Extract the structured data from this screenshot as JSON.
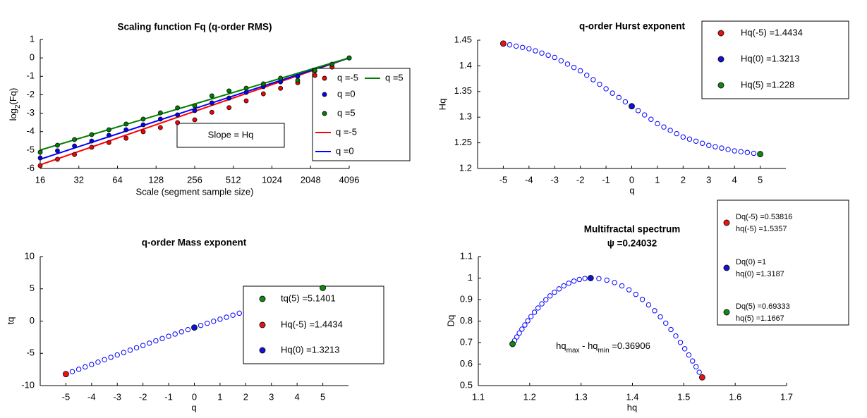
{
  "chart_data": [
    {
      "type": "scatter",
      "title": "Scaling function Fq (q-order RMS)",
      "xlabel": "Scale (segment sample size)",
      "ylabel": [
        "log",
        "2",
        "(Fq)"
      ],
      "xscale": "log2",
      "xlim": [
        16,
        4096
      ],
      "xticks": [
        16,
        32,
        64,
        128,
        256,
        512,
        1024,
        2048,
        4096
      ],
      "ylim": [
        -6,
        1
      ],
      "yticks": [
        -6,
        -5,
        -4,
        -3,
        -2,
        -1,
        0,
        1
      ],
      "annotation": "Slope = Hq",
      "legend": true,
      "series": [
        {
          "name": "q =-5",
          "style": "markers",
          "color": "#ff0000",
          "x": [
            16,
            21.8,
            29.6,
            40.3,
            54.9,
            74.7,
            101.6,
            138.3,
            188.1,
            256,
            348.4,
            474.1,
            645.1,
            877.8,
            1194.6,
            1625.5,
            2211.9,
            3010.1,
            4096
          ],
          "values": [
            -5.85,
            -5.5,
            -5.24,
            -4.85,
            -4.59,
            -4.36,
            -4.01,
            -3.78,
            -3.51,
            -3.36,
            -2.95,
            -2.7,
            -2.33,
            -1.95,
            -1.65,
            -1.35,
            -0.95,
            -0.5,
            0
          ]
        },
        {
          "name": "q =0",
          "style": "markers",
          "color": "#0000ff",
          "x": [
            16,
            21.8,
            29.6,
            40.3,
            54.9,
            74.7,
            101.6,
            138.3,
            188.1,
            256,
            348.4,
            474.1,
            645.1,
            877.8,
            1194.6,
            1625.5,
            2211.9,
            3010.1,
            4096
          ],
          "values": [
            -5.43,
            -5.04,
            -4.78,
            -4.51,
            -4.2,
            -3.9,
            -3.63,
            -3.32,
            -3.09,
            -2.86,
            -2.44,
            -2.18,
            -1.87,
            -1.56,
            -1.3,
            -1,
            -0.7,
            -0.35,
            0
          ]
        },
        {
          "name": "q =5",
          "style": "markers",
          "color": "#008000",
          "x": [
            16,
            21.8,
            29.6,
            40.3,
            54.9,
            74.7,
            101.6,
            138.3,
            188.1,
            256,
            348.4,
            474.1,
            645.1,
            877.8,
            1194.6,
            1625.5,
            2211.9,
            3010.1,
            4096
          ],
          "values": [
            -5.12,
            -4.74,
            -4.43,
            -4.16,
            -3.9,
            -3.59,
            -3.32,
            -2.98,
            -2.71,
            -2.6,
            -2.06,
            -1.79,
            -1.64,
            -1.41,
            -1.1,
            -1.22,
            -0.68,
            -0.34,
            0
          ]
        },
        {
          "name": "q =-5",
          "style": "line",
          "color": "#ff0000",
          "x": [
            16,
            4096
          ],
          "values": [
            -5.8,
            0
          ]
        },
        {
          "name": "q =0",
          "style": "line",
          "color": "#0000ff",
          "x": [
            16,
            4096
          ],
          "values": [
            -5.5,
            0
          ]
        },
        {
          "name": "q =5",
          "style": "line",
          "color": "#008000",
          "x": [
            16,
            4096
          ],
          "values": [
            -5,
            0
          ]
        }
      ]
    },
    {
      "type": "scatter",
      "title": "q-order Hurst exponent",
      "xlabel": "q",
      "ylabel": "Hq",
      "xlim": [
        -6,
        6
      ],
      "xticks": [
        -5,
        -4,
        -3,
        -2,
        -1,
        0,
        1,
        2,
        3,
        4,
        5
      ],
      "ylim": [
        1.2,
        1.45
      ],
      "yticks": [
        1.2,
        1.25,
        1.3,
        1.35,
        1.4,
        1.45
      ],
      "legend": true,
      "series": [
        {
          "style": "open-markers",
          "color": "#0000ff",
          "x": [
            -5,
            -4.75,
            -4.5,
            -4.25,
            -4,
            -3.75,
            -3.5,
            -3.25,
            -3,
            -2.75,
            -2.5,
            -2.25,
            -2,
            -1.75,
            -1.5,
            -1.25,
            -1,
            -0.75,
            -0.5,
            -0.25,
            0,
            0.25,
            0.5,
            0.75,
            1,
            1.25,
            1.5,
            1.75,
            2,
            2.25,
            2.5,
            2.75,
            3,
            3.25,
            3.5,
            3.75,
            4,
            4.25,
            4.5,
            4.75,
            5
          ],
          "values": [
            1.4434,
            1.4409,
            1.4384,
            1.4359,
            1.4334,
            1.4292,
            1.4249,
            1.4207,
            1.4164,
            1.4099,
            1.4034,
            1.3969,
            1.3904,
            1.3816,
            1.3729,
            1.3641,
            1.3553,
            1.3468,
            1.3383,
            1.3298,
            1.3213,
            1.3128,
            1.3043,
            1.2958,
            1.2873,
            1.2808,
            1.2743,
            1.2678,
            1.2613,
            1.2572,
            1.2532,
            1.2491,
            1.245,
            1.2423,
            1.2397,
            1.237,
            1.2343,
            1.2327,
            1.2312,
            1.2296,
            1.228
          ]
        },
        {
          "name": "Hq(-5) =1.4434",
          "style": "markers",
          "color": "#ee1111",
          "x": [
            -5
          ],
          "values": [
            1.4434
          ]
        },
        {
          "name": "Hq(0) =1.3213",
          "style": "markers",
          "color": "#1111dd",
          "x": [
            0
          ],
          "values": [
            1.3213
          ]
        },
        {
          "name": "Hq(5) =1.228",
          "style": "markers",
          "color": "#118811",
          "x": [
            5
          ],
          "values": [
            1.228
          ]
        }
      ]
    },
    {
      "type": "scatter",
      "title": "q-order Mass exponent",
      "xlabel": "q",
      "ylabel": "tq",
      "xlim": [
        -6,
        6
      ],
      "xticks": [
        -5,
        -4,
        -3,
        -2,
        -1,
        0,
        1,
        2,
        3,
        4,
        5
      ],
      "ylim": [
        -10,
        10
      ],
      "yticks": [
        -10,
        -5,
        0,
        5,
        10
      ],
      "legend": true,
      "series": [
        {
          "style": "open-markers",
          "color": "#0000ff",
          "x": [
            -5,
            -4.75,
            -4.5,
            -4.25,
            -4,
            -3.75,
            -3.5,
            -3.25,
            -3,
            -2.75,
            -2.5,
            -2.25,
            -2,
            -1.75,
            -1.5,
            -1.25,
            -1,
            -0.75,
            -0.5,
            -0.25,
            0,
            0.25,
            0.5,
            0.75,
            1,
            1.25,
            1.5,
            1.75,
            2,
            2.25,
            2.5,
            2.75,
            3,
            3.25,
            3.5,
            3.75,
            4,
            4.25,
            4.5,
            4.75,
            5
          ],
          "values": [
            -8.217,
            -7.8443,
            -7.4728,
            -7.1026,
            -6.7336,
            -6.3595,
            -5.9872,
            -5.6173,
            -5.2492,
            -4.8772,
            -4.5085,
            -4.143,
            -3.7808,
            -3.4178,
            -3.0594,
            -2.7051,
            -2.3553,
            -2.0101,
            -1.6692,
            -1.3325,
            -1,
            -0.6718,
            -0.3478,
            -0.0281,
            0.2873,
            0.601,
            0.9115,
            1.2187,
            1.5226,
            1.8287,
            2.133,
            2.435,
            2.735,
            3.0375,
            3.339,
            3.6388,
            3.9372,
            4.239,
            4.5404,
            4.8406,
            5.1401
          ]
        },
        {
          "name": "tq(5) =5.1401",
          "style": "markers",
          "color": "#118811",
          "x": [
            5
          ],
          "values": [
            5.1401
          ]
        },
        {
          "name": "Hq(-5) =1.4434",
          "style": "markers",
          "color": "#ee1111",
          "x": [
            -5
          ],
          "values": [
            -8.217
          ]
        },
        {
          "name": "Hq(0) =1.3213",
          "style": "markers",
          "color": "#1111dd",
          "x": [
            0
          ],
          "values": [
            -1
          ]
        }
      ]
    },
    {
      "type": "scatter",
      "title": "Multifractal spectrum",
      "subtitle": "ψ =0.24032",
      "xlabel": "hq",
      "ylabel": "Dq",
      "xlim": [
        1.1,
        1.7
      ],
      "xticks": [
        1.1,
        1.2,
        1.3,
        1.4,
        1.5,
        1.6,
        1.7
      ],
      "ylim": [
        0.5,
        1.1
      ],
      "yticks": [
        0.5,
        0.6,
        0.7,
        0.8,
        0.9,
        1,
        1.1
      ],
      "annotation": [
        "hq",
        "max",
        " - hq",
        "min",
        " =0.36906"
      ],
      "legend": true,
      "series": [
        {
          "style": "open-markers",
          "color": "#0000ff",
          "x": [
            1.5357,
            1.53,
            1.5238,
            1.517,
            1.5097,
            1.5018,
            1.4934,
            1.4844,
            1.4749,
            1.4649,
            1.4543,
            1.4432,
            1.4315,
            1.4193,
            1.4066,
            1.3933,
            1.3795,
            1.3651,
            1.3502,
            1.3347,
            1.3187,
            1.3075,
            1.2967,
            1.2862,
            1.2761,
            1.2665,
            1.2571,
            1.2482,
            1.2397,
            1.2315,
            1.2237,
            1.2163,
            1.2093,
            1.2026,
            1.1963,
            1.1905,
            1.1849,
            1.1798,
            1.1751,
            1.1707,
            1.1667
          ],
          "values": [
            0.53816,
            0.5621,
            0.5876,
            0.6144,
            0.6424,
            0.6712,
            0.7007,
            0.7306,
            0.7606,
            0.7904,
            0.8196,
            0.848,
            0.8751,
            0.9007,
            0.9242,
            0.9454,
            0.9638,
            0.9789,
            0.9903,
            0.9975,
            1,
            0.9983,
            0.9936,
            0.986,
            0.976,
            0.9638,
            0.9497,
            0.9341,
            0.9171,
            0.8991,
            0.8802,
            0.8608,
            0.841,
            0.8211,
            0.8013,
            0.7817,
            0.7625,
            0.744,
            0.7261,
            0.7092,
            0.69333
          ]
        },
        {
          "name": [
            "Dq(-5) =0.53816",
            "hq(-5) =1.5357"
          ],
          "style": "markers",
          "color": "#ee1111",
          "x": [
            1.5357
          ],
          "values": [
            0.53816
          ]
        },
        {
          "name": [
            "Dq(0) =1",
            "hq(0) =1.3187"
          ],
          "style": "markers",
          "color": "#1111dd",
          "x": [
            1.3187
          ],
          "values": [
            1
          ]
        },
        {
          "name": [
            "Dq(5) =0.69333",
            "hq(5) =1.1667"
          ],
          "style": "markers",
          "color": "#118811",
          "x": [
            1.1667
          ],
          "values": [
            0.69333
          ]
        }
      ]
    }
  ]
}
